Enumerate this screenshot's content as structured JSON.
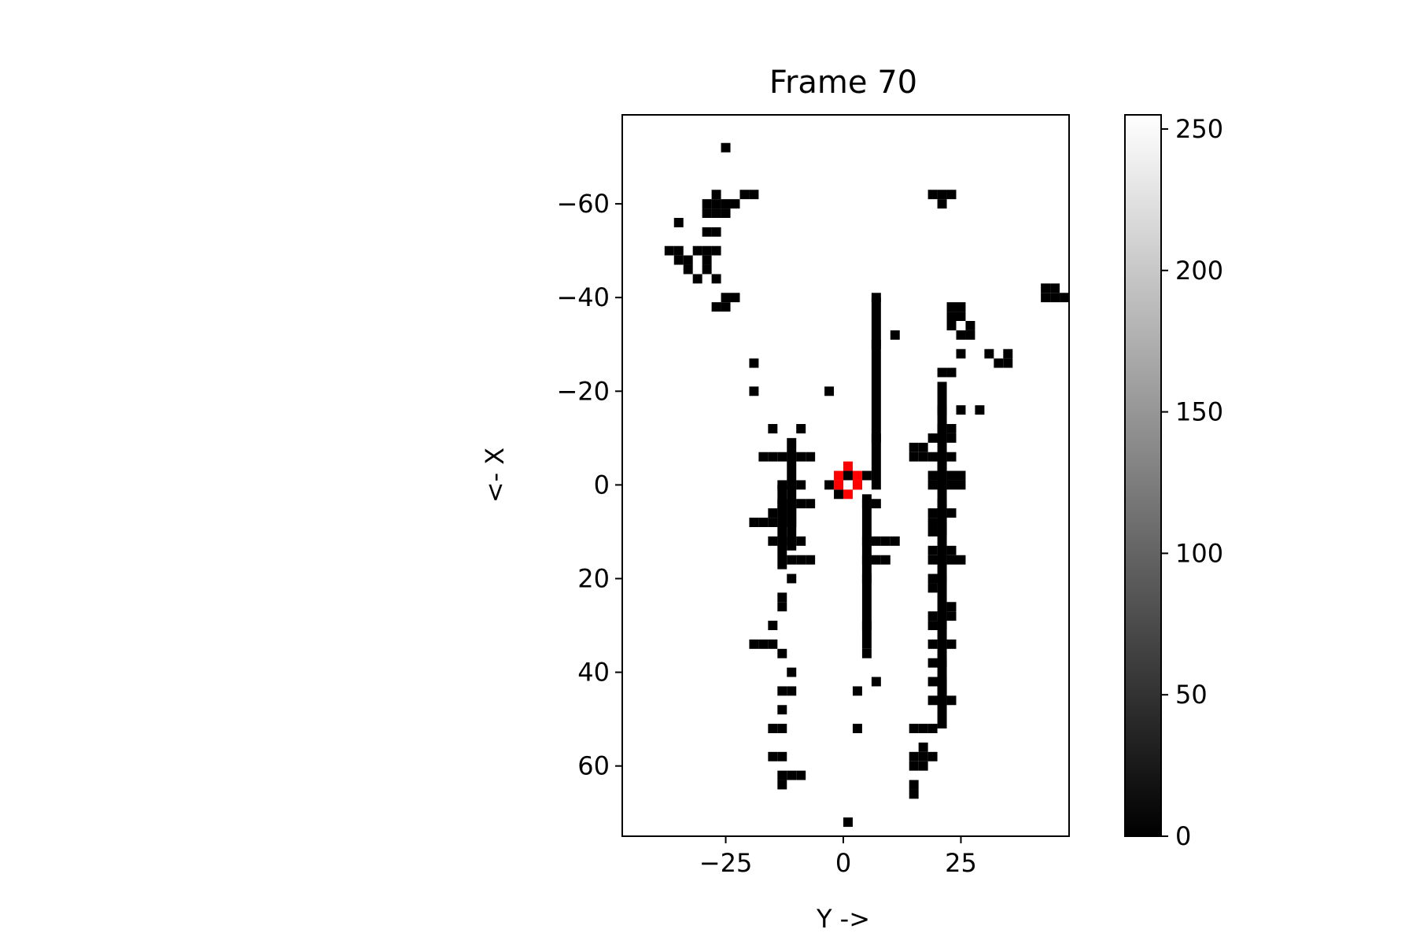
{
  "chart_data": {
    "type": "heatmap",
    "title": "Frame 70",
    "xlabel": "Y ->",
    "ylabel": "<- X",
    "colormap": "gray",
    "x_range": [
      -47,
      48
    ],
    "y_range": [
      -79,
      75
    ],
    "y_inverted": true,
    "x_ticks": [
      {
        "value": -25,
        "label": "−25"
      },
      {
        "value": 0,
        "label": "0"
      },
      {
        "value": 25,
        "label": "25"
      }
    ],
    "y_ticks": [
      {
        "value": -60,
        "label": "−60"
      },
      {
        "value": -40,
        "label": "−40"
      },
      {
        "value": -20,
        "label": "−20"
      },
      {
        "value": 0,
        "label": "0"
      },
      {
        "value": 20,
        "label": "20"
      },
      {
        "value": 40,
        "label": "40"
      },
      {
        "value": 60,
        "label": "60"
      }
    ],
    "colorbar": {
      "range": [
        0,
        255
      ],
      "ticks": [
        {
          "value": 0,
          "label": "0"
        },
        {
          "value": 50,
          "label": "50"
        },
        {
          "value": 100,
          "label": "100"
        },
        {
          "value": 150,
          "label": "150"
        },
        {
          "value": 200,
          "label": "200"
        },
        {
          "value": 250,
          "label": "250"
        }
      ]
    },
    "background_value": 255,
    "occupied_value": 0,
    "occupied_cell_size": 2,
    "occupied_cells": [
      [
        -25,
        -72
      ],
      [
        -27,
        -62
      ],
      [
        -29,
        -60
      ],
      [
        -27,
        -60
      ],
      [
        -25,
        -60
      ],
      [
        -23,
        -60
      ],
      [
        -35,
        -56
      ],
      [
        -29,
        -58
      ],
      [
        -27,
        -58
      ],
      [
        -25,
        -58
      ],
      [
        -29,
        -54
      ],
      [
        -27,
        -54
      ],
      [
        -37,
        -50
      ],
      [
        -35,
        -50
      ],
      [
        -31,
        -50
      ],
      [
        -29,
        -50
      ],
      [
        -27,
        -50
      ],
      [
        -35,
        -48
      ],
      [
        -33,
        -48
      ],
      [
        -29,
        -48
      ],
      [
        -33,
        -46
      ],
      [
        -29,
        -46
      ],
      [
        -31,
        -44
      ],
      [
        -27,
        -44
      ],
      [
        -25,
        -40
      ],
      [
        -23,
        -40
      ],
      [
        -27,
        -38
      ],
      [
        -25,
        -38
      ],
      [
        -21,
        -62
      ],
      [
        -19,
        -62
      ],
      [
        -19,
        -26
      ],
      [
        -19,
        -20
      ],
      [
        -3,
        -20
      ],
      [
        -15,
        -12
      ],
      [
        -9,
        -12
      ],
      [
        -17,
        -6
      ],
      [
        -15,
        -6
      ],
      [
        -13,
        -6
      ],
      [
        -11,
        -6
      ],
      [
        -9,
        -6
      ],
      [
        -7,
        -6
      ],
      [
        -1,
        2
      ],
      [
        -3,
        0
      ],
      [
        3,
        0
      ],
      [
        1,
        -2
      ],
      [
        -13,
        0
      ],
      [
        -11,
        0
      ],
      [
        -9,
        0
      ],
      [
        -13,
        4
      ],
      [
        -11,
        4
      ],
      [
        -9,
        4
      ],
      [
        -7,
        4
      ],
      [
        -15,
        6
      ],
      [
        -13,
        6
      ],
      [
        -11,
        6
      ],
      [
        -19,
        8
      ],
      [
        -17,
        8
      ],
      [
        -15,
        8
      ],
      [
        -13,
        8
      ],
      [
        -11,
        8
      ],
      [
        -15,
        12
      ],
      [
        -13,
        12
      ],
      [
        -9,
        12
      ],
      [
        -11,
        16
      ],
      [
        -9,
        16
      ],
      [
        -7,
        16
      ],
      [
        -11,
        20
      ],
      [
        -13,
        24
      ],
      [
        -13,
        26
      ],
      [
        -15,
        30
      ],
      [
        -19,
        34
      ],
      [
        -17,
        34
      ],
      [
        -15,
        34
      ],
      [
        -13,
        36
      ],
      [
        -11,
        40
      ],
      [
        -13,
        44
      ],
      [
        -11,
        44
      ],
      [
        -13,
        48
      ],
      [
        -15,
        52
      ],
      [
        -13,
        52
      ],
      [
        -15,
        58
      ],
      [
        -13,
        58
      ],
      [
        -13,
        62
      ],
      [
        -11,
        62
      ],
      [
        -9,
        62
      ],
      [
        -13,
        64
      ],
      [
        7,
        -40
      ],
      [
        7,
        -30
      ],
      [
        7,
        -10
      ],
      [
        5,
        -2
      ],
      [
        5,
        4
      ],
      [
        7,
        4
      ],
      [
        5,
        12
      ],
      [
        7,
        12
      ],
      [
        9,
        12
      ],
      [
        11,
        12
      ],
      [
        9,
        16
      ],
      [
        7,
        16
      ],
      [
        5,
        16
      ],
      [
        5,
        20
      ],
      [
        5,
        30
      ],
      [
        5,
        36
      ],
      [
        7,
        42
      ],
      [
        3,
        44
      ],
      [
        3,
        52
      ],
      [
        11,
        -32
      ],
      [
        15,
        -8
      ],
      [
        17,
        -8
      ],
      [
        15,
        -6
      ],
      [
        17,
        -6
      ],
      [
        19,
        -62
      ],
      [
        21,
        -62
      ],
      [
        23,
        -62
      ],
      [
        21,
        -60
      ],
      [
        23,
        -38
      ],
      [
        25,
        -38
      ],
      [
        23,
        -36
      ],
      [
        25,
        -36
      ],
      [
        23,
        -34
      ],
      [
        27,
        -34
      ],
      [
        25,
        -32
      ],
      [
        27,
        -32
      ],
      [
        25,
        -28
      ],
      [
        31,
        -28
      ],
      [
        35,
        -28
      ],
      [
        33,
        -26
      ],
      [
        35,
        -26
      ],
      [
        21,
        -24
      ],
      [
        23,
        -24
      ],
      [
        21,
        -16
      ],
      [
        25,
        -16
      ],
      [
        29,
        -16
      ],
      [
        21,
        -12
      ],
      [
        23,
        -12
      ],
      [
        19,
        -10
      ],
      [
        21,
        -10
      ],
      [
        23,
        -10
      ],
      [
        19,
        -6
      ],
      [
        21,
        -6
      ],
      [
        23,
        -6
      ],
      [
        21,
        -4
      ],
      [
        19,
        -2
      ],
      [
        21,
        -2
      ],
      [
        23,
        -2
      ],
      [
        25,
        -2
      ],
      [
        19,
        0
      ],
      [
        21,
        0
      ],
      [
        23,
        0
      ],
      [
        25,
        0
      ],
      [
        21,
        4
      ],
      [
        19,
        6
      ],
      [
        21,
        6
      ],
      [
        23,
        6
      ],
      [
        19,
        8
      ],
      [
        21,
        8
      ],
      [
        19,
        10
      ],
      [
        21,
        10
      ],
      [
        19,
        14
      ],
      [
        23,
        14
      ],
      [
        19,
        16
      ],
      [
        21,
        16
      ],
      [
        23,
        16
      ],
      [
        25,
        16
      ],
      [
        19,
        20
      ],
      [
        21,
        20
      ],
      [
        19,
        22
      ],
      [
        23,
        26
      ],
      [
        19,
        28
      ],
      [
        23,
        28
      ],
      [
        19,
        30
      ],
      [
        21,
        30
      ],
      [
        19,
        34
      ],
      [
        23,
        34
      ],
      [
        19,
        38
      ],
      [
        21,
        38
      ],
      [
        21,
        42
      ],
      [
        19,
        42
      ],
      [
        21,
        44
      ],
      [
        19,
        46
      ],
      [
        21,
        46
      ],
      [
        23,
        46
      ],
      [
        15,
        52
      ],
      [
        17,
        52
      ],
      [
        19,
        52
      ],
      [
        17,
        56
      ],
      [
        15,
        58
      ],
      [
        17,
        58
      ],
      [
        19,
        58
      ],
      [
        15,
        60
      ],
      [
        17,
        60
      ],
      [
        15,
        64
      ],
      [
        15,
        66
      ],
      [
        43,
        -42
      ],
      [
        45,
        -42
      ],
      [
        43,
        -40
      ],
      [
        45,
        -40
      ],
      [
        47,
        -40
      ],
      [
        1,
        72
      ]
    ],
    "occupied_columns": [
      {
        "x": 7,
        "from": -40,
        "to": 1
      },
      {
        "x": 5,
        "from": 2,
        "to": 35
      },
      {
        "x": 21,
        "from": -22,
        "to": 52
      },
      {
        "x": -13,
        "from": 0,
        "to": 18
      },
      {
        "x": -11,
        "from": -10,
        "to": 14
      }
    ],
    "marker_color": "#ff0000",
    "marker_cells": [
      [
        1,
        -4
      ],
      [
        -1,
        -2
      ],
      [
        3,
        -2
      ],
      [
        -1,
        0
      ],
      [
        3,
        0
      ],
      [
        1,
        2
      ]
    ]
  }
}
